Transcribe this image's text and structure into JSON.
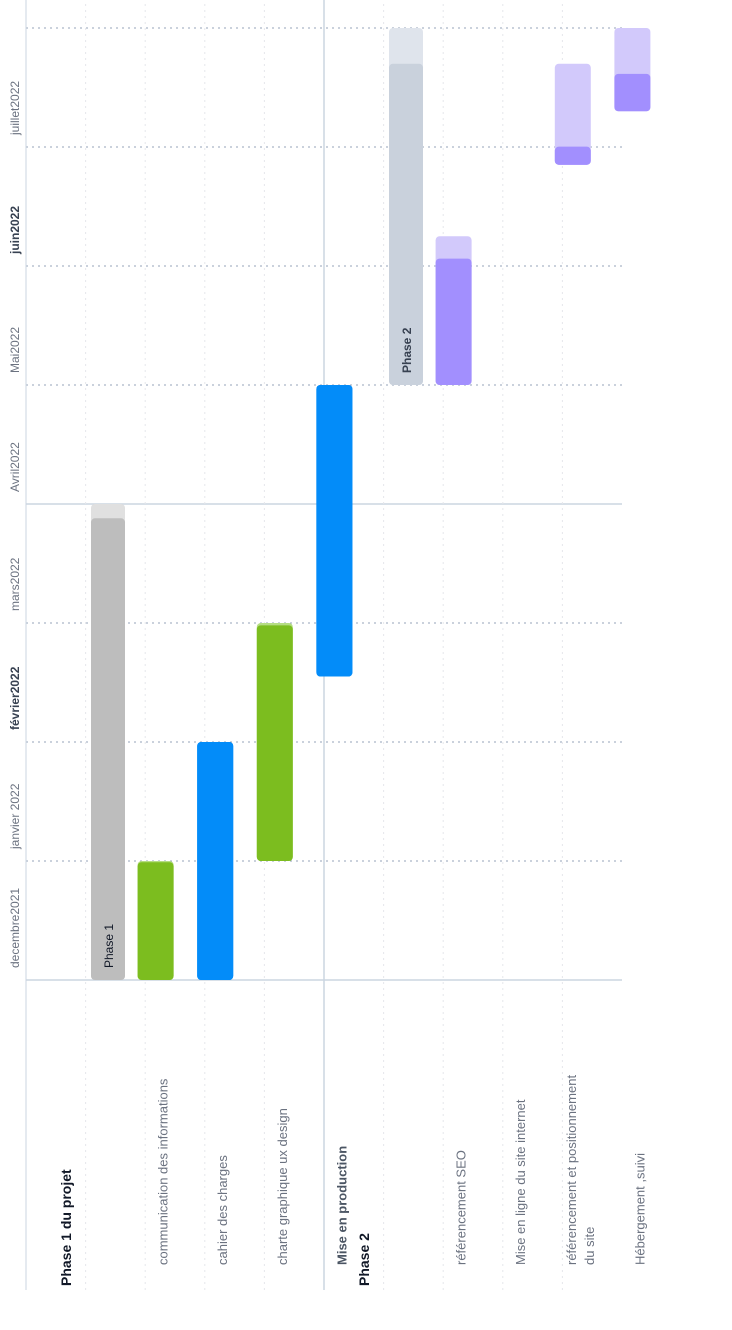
{
  "chart_data": {
    "type": "gantt",
    "timeline": [
      {
        "label": "decembre2021",
        "bold": false
      },
      {
        "label": "janvier 2022",
        "bold": false
      },
      {
        "label": "février2022",
        "bold": true
      },
      {
        "label": "mars2022",
        "bold": false
      },
      {
        "label": "Avril2022",
        "bold": false
      },
      {
        "label": "Mai2022",
        "bold": false
      },
      {
        "label": "juin2022",
        "bold": true
      },
      {
        "label": "juillet2022",
        "bold": false
      }
    ],
    "groups": [
      {
        "name": "Phase 1 du projet",
        "summary": {
          "label": "Phase 1",
          "start": 0,
          "end": 4,
          "progress": 0.97,
          "color": "#bdbdbd",
          "track": "#e0e0e0"
        },
        "tasks": [
          {
            "name": "communication des informations",
            "start": 0,
            "end": 1,
            "progress": 0.99,
            "color": "#7cbd1f",
            "track": "#b5dd83",
            "bold": false
          },
          {
            "name": "cahier des charges",
            "start": 0,
            "end": 2,
            "progress": 1.0,
            "color": "#038cf9",
            "track": "#038cf9",
            "bold": false
          },
          {
            "name": "charte graphique ux design",
            "start": 1,
            "end": 3,
            "progress": 0.99,
            "color": "#7cbd1f",
            "track": "#b5dd83",
            "bold": false
          },
          {
            "name": "Mise en production",
            "start": 2.55,
            "end": 5,
            "progress": 1.0,
            "color": "#038cf9",
            "track": "#038cf9",
            "bold": true
          }
        ]
      },
      {
        "name": "Phase 2",
        "summary": {
          "label": "Phase 2",
          "start": 5,
          "end": 8,
          "progress": 0.9,
          "color": "#c9d1dc",
          "track": "#dfe4ec",
          "bold": true
        },
        "tasks": [
          {
            "name": "référencement SEO",
            "start": 5,
            "end": 6.25,
            "progress": 0.85,
            "color": "#a28ffe",
            "track": "#d2c9fb",
            "bold": false
          },
          {
            "name": "Mise en ligne du site internet",
            "start": null,
            "end": null,
            "progress": null,
            "color": "",
            "track": "",
            "bold": false
          },
          {
            "name": [
              "référencement et positionnement",
              "du site"
            ],
            "start": 6.85,
            "end": 7.7,
            "progress": 0.18,
            "color": "#a28ffe",
            "track": "#d2c9fb",
            "bold": false
          },
          {
            "name": "Hébergement ,suivi",
            "start": 7.3,
            "end": 8,
            "progress": 0.45,
            "color": "#a28ffe",
            "track": "#d2c9fb",
            "bold": false
          }
        ]
      }
    ]
  }
}
